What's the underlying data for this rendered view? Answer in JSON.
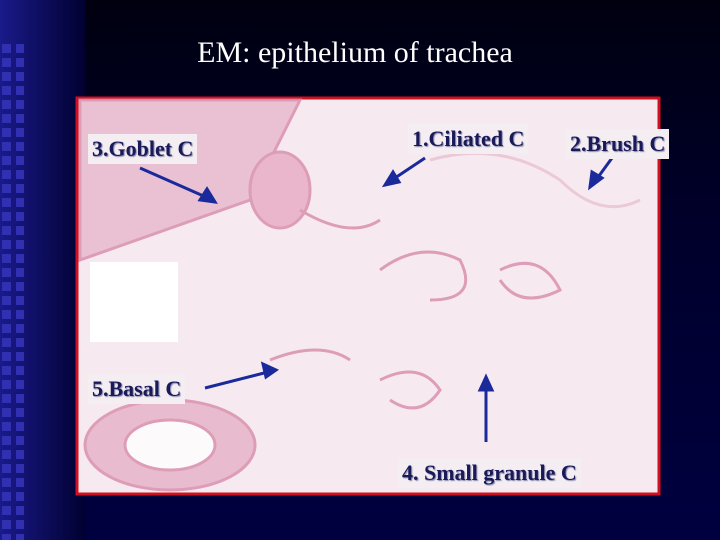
{
  "slide": {
    "title": "EM: epithelium of trachea",
    "labels": [
      "1.Ciliated C",
      "2.Brush C",
      "3.Goblet C",
      "4. Small granule C",
      "5.Basal C"
    ]
  }
}
